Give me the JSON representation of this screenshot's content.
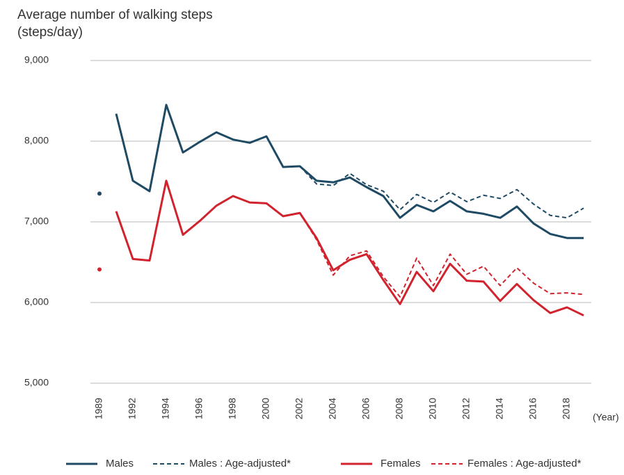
{
  "chart_data": {
    "type": "line",
    "title": "Average number of walking steps",
    "ylabel": "(steps/day)",
    "xlabel": "(Year)",
    "categories": [
      "1989",
      null,
      "1992",
      null,
      "1994",
      null,
      "1996",
      null,
      "1998",
      null,
      "2000",
      null,
      "2002",
      null,
      "2004",
      null,
      "2006",
      null,
      "2008",
      null,
      "2010",
      null,
      "2012",
      null,
      "2014",
      null,
      "2016",
      null,
      "2018",
      null
    ],
    "separate_first": true,
    "ylim": [
      5000,
      9000
    ],
    "yticks": [
      {
        "value": 5000,
        "label": "5,000"
      },
      {
        "value": 6000,
        "label": "6,000"
      },
      {
        "value": 7000,
        "label": "7,000"
      },
      {
        "value": 8000,
        "label": "8,000"
      },
      {
        "value": 9000,
        "label": "9,000"
      }
    ],
    "grid": true,
    "legend": "bottom",
    "series": [
      {
        "name": "Males",
        "color": "#1f4a63",
        "dashed": false,
        "values": [
          7350,
          8340,
          7510,
          7380,
          8450,
          7860,
          7990,
          8110,
          8020,
          7980,
          8060,
          7680,
          7690,
          7510,
          7490,
          7550,
          7430,
          7320,
          7050,
          7210,
          7130,
          7260,
          7130,
          7100,
          7050,
          7190,
          6980,
          6850,
          6800,
          6800
        ]
      },
      {
        "name": "Males : Age-adjusted*",
        "color": "#1f4a63",
        "dashed": true,
        "values": [
          null,
          null,
          null,
          null,
          null,
          null,
          null,
          null,
          null,
          null,
          null,
          null,
          7690,
          7470,
          7450,
          7600,
          7460,
          7380,
          7150,
          7340,
          7240,
          7370,
          7250,
          7330,
          7290,
          7400,
          7220,
          7080,
          7050,
          7170
        ]
      },
      {
        "name": "Females",
        "color": "#d1232e",
        "dashed": false,
        "values": [
          6410,
          7130,
          6540,
          6520,
          7510,
          6840,
          7010,
          7200,
          7320,
          7240,
          7230,
          7070,
          7110,
          6800,
          6400,
          6530,
          6600,
          6280,
          5980,
          6380,
          6140,
          6480,
          6270,
          6260,
          6020,
          6230,
          6030,
          5870,
          5940,
          5840
        ]
      },
      {
        "name": "Females : Age-adjusted*",
        "color": "#d1232e",
        "dashed": true,
        "values": [
          null,
          null,
          null,
          null,
          null,
          null,
          null,
          null,
          null,
          null,
          null,
          null,
          7110,
          6780,
          6340,
          6580,
          6640,
          6320,
          6070,
          6550,
          6210,
          6600,
          6350,
          6450,
          6210,
          6430,
          6240,
          6110,
          6120,
          6100
        ]
      }
    ]
  }
}
